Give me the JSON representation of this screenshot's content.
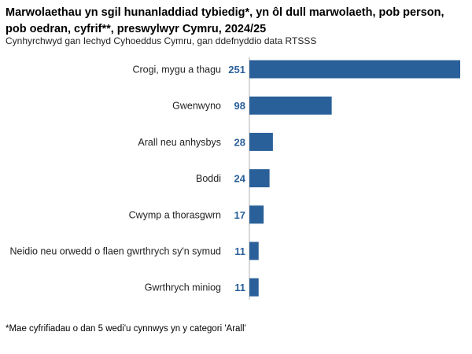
{
  "colors": {
    "bar": "#2a6099",
    "value_label": "#2a6099",
    "axis": "#b0b0b0"
  },
  "chart_data": {
    "type": "bar",
    "orientation": "horizontal",
    "title": "Marwolaethau yn sgil hunanladdiad tybiedig*, yn ôl dull marwolaeth, pob person, pob oedran, cyfrif**, preswylwyr Cymru, 2024/25",
    "subtitle": "Cynhyrchwyd gan Iechyd Cyhoeddus Cymru, gan ddefnyddio data RTSSS",
    "footnote": "*Mae cyfrifiadau o dan 5 wedi'u cynnwys yn y categori 'Arall'",
    "categories": [
      "Crogi, mygu a thagu",
      "Gwenwyno",
      "Arall neu anhysbys",
      "Boddi",
      "Cwymp a thorasgwrn",
      "Neidio neu orwedd o flaen gwrthrych sy'n symud",
      "Gwrthrych miniog"
    ],
    "values": [
      251,
      98,
      28,
      24,
      17,
      11,
      11
    ],
    "xlim": [
      0,
      251
    ],
    "grid": false,
    "legend": "none",
    "data_labels": true
  }
}
